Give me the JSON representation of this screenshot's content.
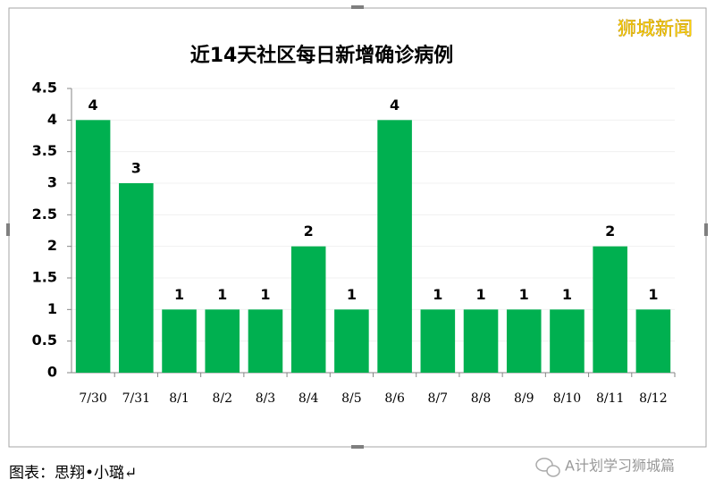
{
  "chart_data": {
    "type": "bar",
    "title": "近14天社区每日新增确诊病例",
    "categories": [
      "7/30",
      "7/31",
      "8/1",
      "8/2",
      "8/3",
      "8/4",
      "8/5",
      "8/6",
      "8/7",
      "8/8",
      "8/9",
      "8/10",
      "8/11",
      "8/12"
    ],
    "values": [
      4,
      3,
      1,
      1,
      1,
      2,
      1,
      4,
      1,
      1,
      1,
      1,
      2,
      1
    ],
    "color": "#00b050",
    "ylim": [
      0,
      4.5
    ],
    "yticks": [
      0,
      0.5,
      1,
      1.5,
      2,
      2.5,
      3,
      3.5,
      4,
      4.5
    ],
    "grid": true
  },
  "badge": "狮城新闻",
  "footer": {
    "caption": "图表：思翔•小璐↵",
    "watermark": "A计划学习狮城篇"
  }
}
